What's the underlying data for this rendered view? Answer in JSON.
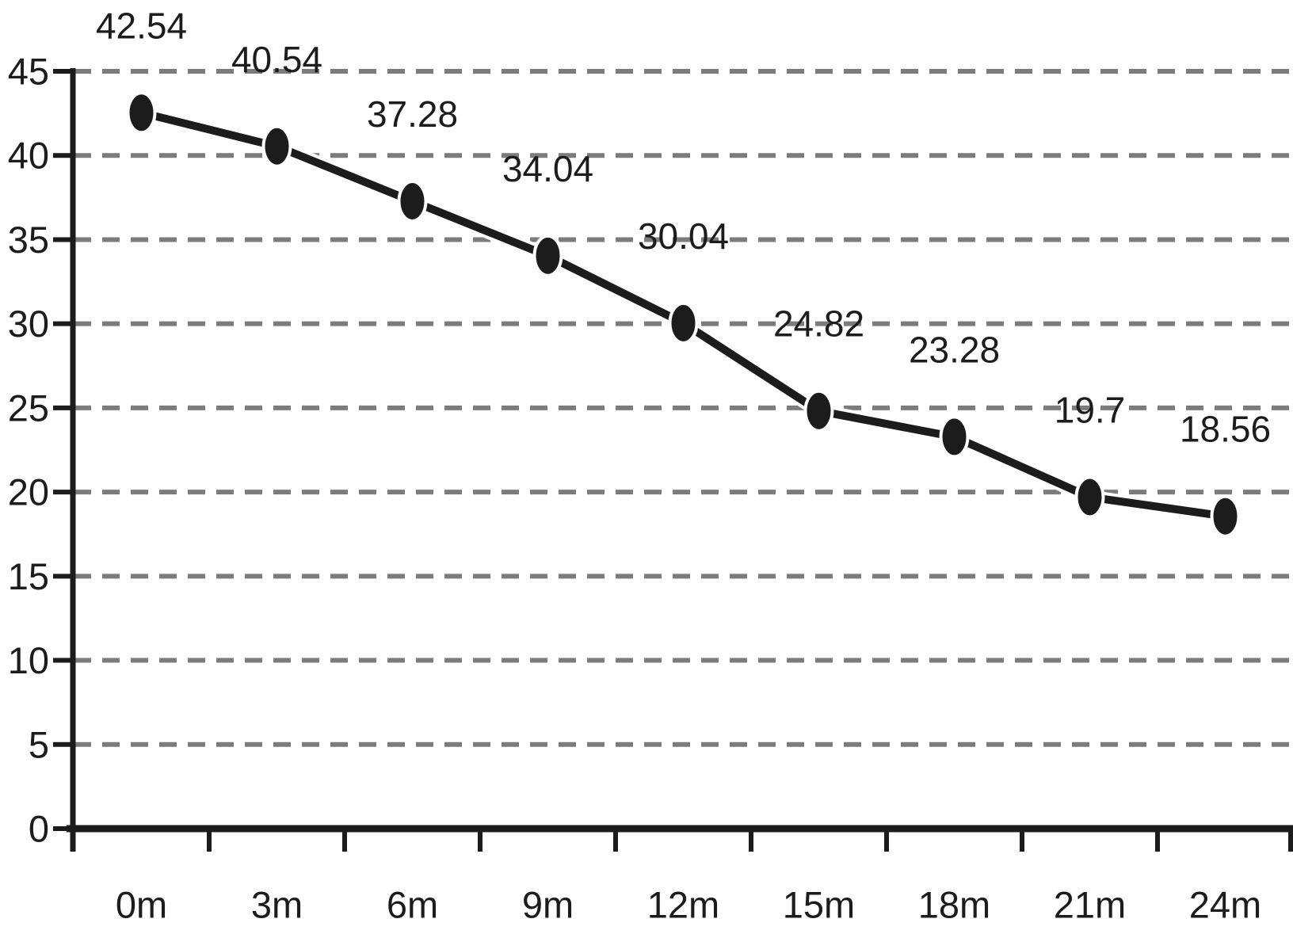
{
  "chart_data": {
    "type": "line",
    "categories": [
      "0m",
      "3m",
      "6m",
      "9m",
      "12m",
      "15m",
      "18m",
      "21m",
      "24m"
    ],
    "values": [
      42.54,
      40.54,
      37.28,
      34.04,
      30.04,
      24.82,
      23.28,
      19.7,
      18.56
    ],
    "data_labels": [
      "42.54",
      "40.54",
      "37.28",
      "34.04",
      "30.04",
      "24.82",
      "23.28",
      "19.7",
      "18.56"
    ],
    "series_name": "",
    "title": "",
    "xlabel": "",
    "ylabel": "",
    "ylim": [
      0,
      45
    ],
    "ytick_interval": 5,
    "ytick_labels": [
      "0",
      "5",
      "10",
      "15",
      "20",
      "25",
      "30",
      "35",
      "40",
      "45"
    ],
    "grid": "horizontal-dashed",
    "legend": "none",
    "marker": "filled-vertical-ellipse",
    "colors": {
      "series": "#1c1c1c",
      "marker": "#1c1c1c",
      "axis": "#1c1c1c",
      "gridline": "#7c7c7c",
      "text": "#1c1c1c",
      "background": "#ffffff"
    }
  }
}
